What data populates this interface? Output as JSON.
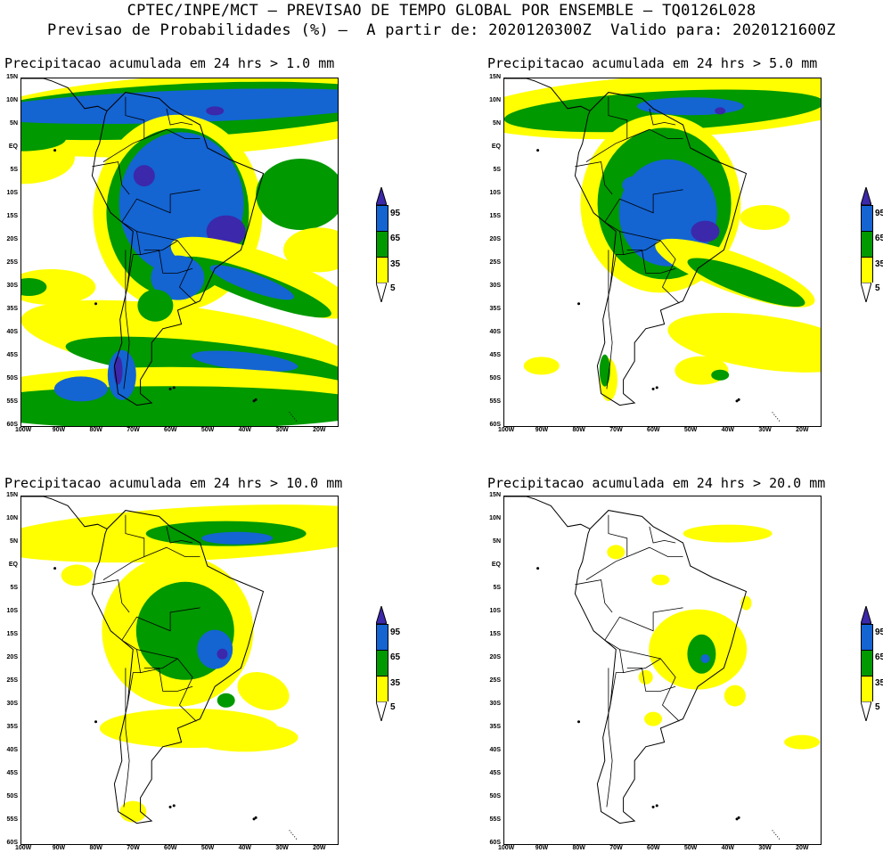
{
  "header": {
    "line1": "CPTEC/INPE/MCT – PREVISAO DE TEMPO GLOBAL POR ENSEMBLE – TQ0126L028",
    "line2": "Previsao de Probabilidades (%) –  A partir de: 2020120300Z  Valido para: 2020121600Z"
  },
  "panels": [
    {
      "title": "Precipitacao acumulada em 24 hrs > 1.0 mm"
    },
    {
      "title": "Precipitacao acumulada em 24 hrs > 5.0 mm"
    },
    {
      "title": "Precipitacao acumulada em 24 hrs > 10.0 mm"
    },
    {
      "title": "Precipitacao acumulada em 24 hrs > 20.0 mm"
    }
  ],
  "axes": {
    "lat_labels": [
      "15N",
      "10N",
      "5N",
      "EQ",
      "5S",
      "10S",
      "15S",
      "20S",
      "25S",
      "30S",
      "35S",
      "40S",
      "45S",
      "50S",
      "55S",
      "60S"
    ],
    "lon_labels": [
      "100W",
      "90W",
      "80W",
      "70W",
      "60W",
      "50W",
      "40W",
      "30W",
      "20W"
    ]
  },
  "colorbar": {
    "ticks": [
      "95",
      "65",
      "35",
      "5"
    ],
    "colors": {
      "yellow": "#ffff00",
      "green": "#009900",
      "blue": "#1464d2",
      "purple": "#3c28aa"
    }
  }
}
